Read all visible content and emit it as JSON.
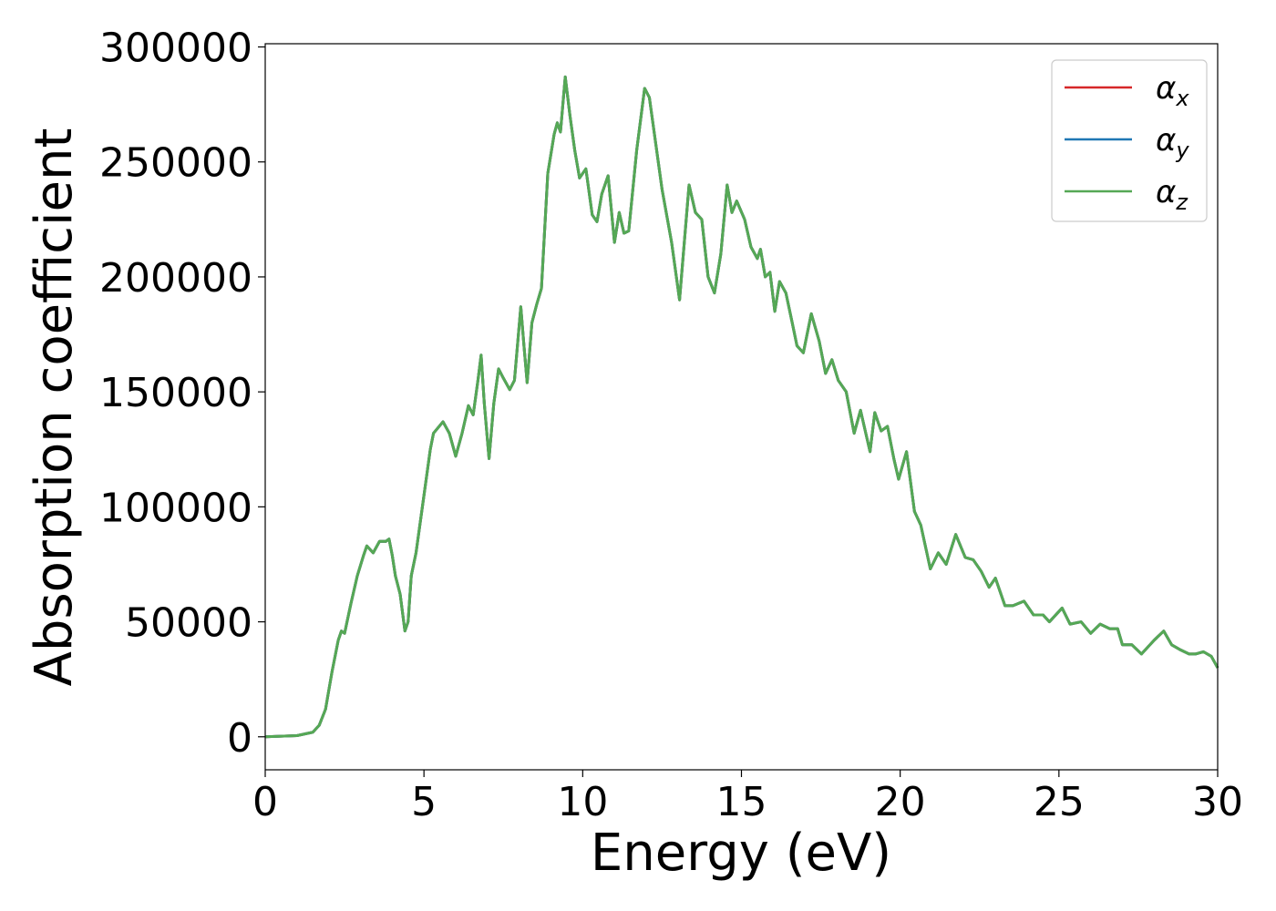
{
  "chart_data": {
    "type": "line",
    "xlabel": "Energy (eV)",
    "ylabel": "Absorption coefficient",
    "xlim": [
      0,
      30
    ],
    "xticks": [
      0,
      5,
      10,
      15,
      20,
      25,
      30
    ],
    "ylim": [
      -14350,
      301400
    ],
    "yticks": [
      0,
      50000,
      100000,
      150000,
      200000,
      250000,
      300000
    ],
    "legend": "upper right",
    "x": [
      0,
      1,
      1.5,
      1.7,
      1.9,
      2.1,
      2.3,
      2.4,
      2.5,
      2.7,
      2.9,
      3.1,
      3.2,
      3.4,
      3.6,
      3.8,
      3.9,
      4.0,
      4.1,
      4.25,
      4.4,
      4.5,
      4.6,
      4.75,
      5.0,
      5.2,
      5.3,
      5.6,
      5.8,
      6.0,
      6.2,
      6.4,
      6.55,
      6.7,
      6.8,
      6.9,
      7.05,
      7.2,
      7.35,
      7.5,
      7.7,
      7.85,
      8.05,
      8.15,
      8.25,
      8.4,
      8.55,
      8.7,
      8.9,
      9.1,
      9.2,
      9.3,
      9.45,
      9.6,
      9.75,
      9.9,
      10.1,
      10.3,
      10.45,
      10.6,
      10.8,
      11.0,
      11.15,
      11.3,
      11.45,
      11.7,
      11.95,
      12.1,
      12.3,
      12.5,
      12.8,
      13.05,
      13.2,
      13.35,
      13.55,
      13.75,
      13.95,
      14.15,
      14.35,
      14.55,
      14.7,
      14.85,
      15.1,
      15.3,
      15.5,
      15.6,
      15.75,
      15.9,
      16.05,
      16.2,
      16.4,
      16.6,
      16.75,
      16.95,
      17.2,
      17.45,
      17.65,
      17.85,
      18.05,
      18.3,
      18.55,
      18.75,
      18.9,
      19.05,
      19.2,
      19.4,
      19.6,
      19.8,
      19.95,
      20.2,
      20.45,
      20.65,
      20.95,
      21.2,
      21.45,
      21.75,
      22.05,
      22.3,
      22.55,
      22.8,
      23.0,
      23.3,
      23.55,
      23.9,
      24.2,
      24.5,
      24.7,
      25.1,
      25.35,
      25.7,
      26.0,
      26.3,
      26.6,
      26.85,
      27.0,
      27.3,
      27.6,
      28.0,
      28.3,
      28.55,
      28.8,
      29.1,
      29.3,
      29.55,
      29.8,
      30.0
    ],
    "series": [
      {
        "name": "α_x",
        "color": "#d62728",
        "values": [
          0,
          500,
          2000,
          5000,
          12000,
          28000,
          42000,
          46000,
          45000,
          58000,
          70000,
          79000,
          83000,
          80000,
          85000,
          85000,
          86000,
          79000,
          70000,
          62000,
          46000,
          50000,
          70000,
          80000,
          105000,
          125000,
          132000,
          137000,
          132000,
          122000,
          132000,
          144000,
          140000,
          155000,
          166000,
          145000,
          121000,
          145000,
          160000,
          156000,
          151000,
          155000,
          187000,
          170000,
          154000,
          180000,
          188000,
          195000,
          245000,
          262000,
          267000,
          263000,
          287000,
          270000,
          255000,
          243000,
          247000,
          227000,
          224000,
          236000,
          244000,
          215000,
          228000,
          219000,
          220000,
          255000,
          282000,
          278000,
          258000,
          238000,
          215000,
          190000,
          215000,
          240000,
          228000,
          225000,
          200000,
          193000,
          210000,
          240000,
          228000,
          233000,
          225000,
          213000,
          208000,
          212000,
          200000,
          202000,
          185000,
          198000,
          193000,
          180000,
          170000,
          167000,
          184000,
          172000,
          158000,
          164000,
          155000,
          150000,
          132000,
          142000,
          133000,
          124000,
          141000,
          133000,
          135000,
          121000,
          112000,
          124000,
          98000,
          92000,
          73000,
          80000,
          75000,
          88000,
          78000,
          77000,
          72000,
          65000,
          69000,
          57000,
          57000,
          59000,
          53000,
          53000,
          50000,
          56000,
          49000,
          50000,
          45000,
          49000,
          47000,
          47000,
          40000,
          40000,
          36000,
          42000,
          46000,
          40000,
          38000,
          36000,
          36000,
          37000,
          35000,
          30000
        ]
      },
      {
        "name": "α_y",
        "color": "#1f77b4",
        "values": [
          0,
          500,
          2000,
          5000,
          12000,
          28000,
          42000,
          46000,
          45000,
          58000,
          70000,
          79000,
          83000,
          80000,
          85000,
          85000,
          86000,
          79000,
          70000,
          62000,
          46000,
          50000,
          70000,
          80000,
          105000,
          125000,
          132000,
          137000,
          132000,
          122000,
          132000,
          144000,
          140000,
          155000,
          166000,
          145000,
          121000,
          145000,
          160000,
          156000,
          151000,
          155000,
          187000,
          170000,
          154000,
          180000,
          188000,
          195000,
          245000,
          262000,
          267000,
          263000,
          287000,
          270000,
          255000,
          243000,
          247000,
          227000,
          224000,
          236000,
          244000,
          215000,
          228000,
          219000,
          220000,
          255000,
          282000,
          278000,
          258000,
          238000,
          215000,
          190000,
          215000,
          240000,
          228000,
          225000,
          200000,
          193000,
          210000,
          240000,
          228000,
          233000,
          225000,
          213000,
          208000,
          212000,
          200000,
          202000,
          185000,
          198000,
          193000,
          180000,
          170000,
          167000,
          184000,
          172000,
          158000,
          164000,
          155000,
          150000,
          132000,
          142000,
          133000,
          124000,
          141000,
          133000,
          135000,
          121000,
          112000,
          124000,
          98000,
          92000,
          73000,
          80000,
          75000,
          88000,
          78000,
          77000,
          72000,
          65000,
          69000,
          57000,
          57000,
          59000,
          53000,
          53000,
          50000,
          56000,
          49000,
          50000,
          45000,
          49000,
          47000,
          47000,
          40000,
          40000,
          36000,
          42000,
          46000,
          40000,
          38000,
          36000,
          36000,
          37000,
          35000,
          30000
        ]
      },
      {
        "name": "α_z",
        "color": "#55a855",
        "values": [
          0,
          500,
          2000,
          5000,
          12000,
          28000,
          42000,
          46000,
          45000,
          58000,
          70000,
          79000,
          83000,
          80000,
          85000,
          85000,
          86000,
          79000,
          70000,
          62000,
          46000,
          50000,
          70000,
          80000,
          105000,
          125000,
          132000,
          137000,
          132000,
          122000,
          132000,
          144000,
          140000,
          155000,
          166000,
          145000,
          121000,
          145000,
          160000,
          156000,
          151000,
          155000,
          187000,
          170000,
          154000,
          180000,
          188000,
          195000,
          245000,
          262000,
          267000,
          263000,
          287000,
          270000,
          255000,
          243000,
          247000,
          227000,
          224000,
          236000,
          244000,
          215000,
          228000,
          219000,
          220000,
          255000,
          282000,
          278000,
          258000,
          238000,
          215000,
          190000,
          215000,
          240000,
          228000,
          225000,
          200000,
          193000,
          210000,
          240000,
          228000,
          233000,
          225000,
          213000,
          208000,
          212000,
          200000,
          202000,
          185000,
          198000,
          193000,
          180000,
          170000,
          167000,
          184000,
          172000,
          158000,
          164000,
          155000,
          150000,
          132000,
          142000,
          133000,
          124000,
          141000,
          133000,
          135000,
          121000,
          112000,
          124000,
          98000,
          92000,
          73000,
          80000,
          75000,
          88000,
          78000,
          77000,
          72000,
          65000,
          69000,
          57000,
          57000,
          59000,
          53000,
          53000,
          50000,
          56000,
          49000,
          50000,
          45000,
          49000,
          47000,
          47000,
          40000,
          40000,
          36000,
          42000,
          46000,
          40000,
          38000,
          36000,
          36000,
          37000,
          35000,
          30000
        ]
      }
    ]
  }
}
